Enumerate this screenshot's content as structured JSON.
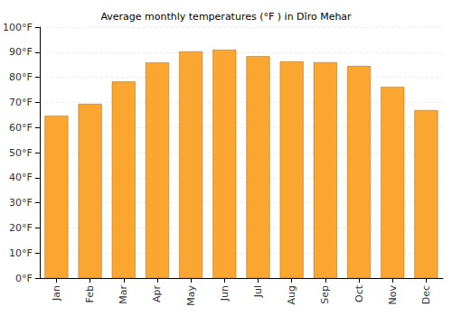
{
  "chart_data": {
    "type": "bar",
    "title": "Average monthly temperatures (°F ) in Dīro Mehar",
    "categories": [
      "Jan",
      "Feb",
      "Mar",
      "Apr",
      "May",
      "Jun",
      "Jul",
      "Aug",
      "Sep",
      "Oct",
      "Nov",
      "Dec"
    ],
    "values": [
      64.7,
      69.4,
      78.3,
      85.9,
      90.3,
      91.0,
      88.4,
      86.3,
      86.0,
      84.5,
      76.2,
      66.9
    ],
    "color": "#fba631",
    "ylim": [
      0,
      100
    ],
    "yticks": [
      {
        "value": 0,
        "label": "0°F"
      },
      {
        "value": 10,
        "label": "10°F"
      },
      {
        "value": 20,
        "label": "20°F"
      },
      {
        "value": 30,
        "label": "30°F"
      },
      {
        "value": 40,
        "label": "40°F"
      },
      {
        "value": 50,
        "label": "50°F"
      },
      {
        "value": 60,
        "label": "60°F"
      },
      {
        "value": 70,
        "label": "70°F"
      },
      {
        "value": 80,
        "label": "80°F"
      },
      {
        "value": 90,
        "label": "90°F"
      },
      {
        "value": 100,
        "label": "100°F"
      }
    ],
    "grid": true
  }
}
